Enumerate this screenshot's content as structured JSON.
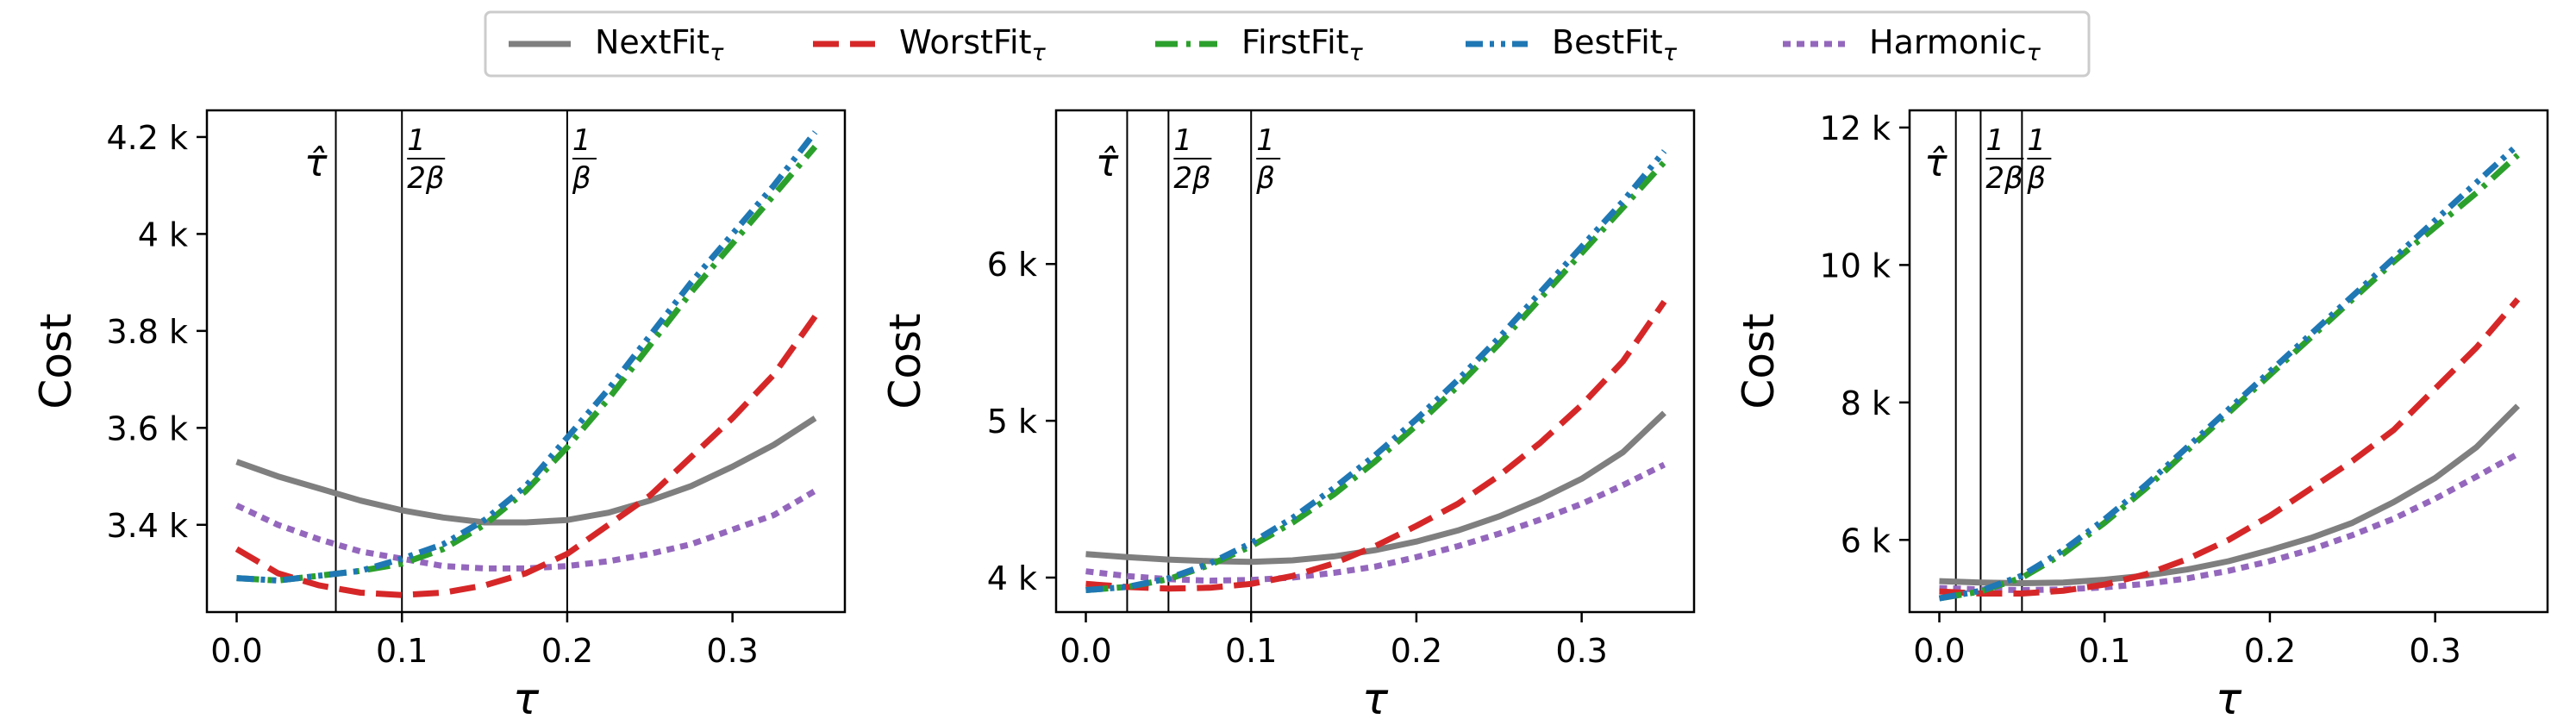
{
  "legend": {
    "placement": "top-center",
    "entries": [
      {
        "key": "nextfit",
        "name": "NextFit",
        "sub": "τ",
        "color": "#7f7f7f",
        "dash": "solid"
      },
      {
        "key": "worstfit",
        "name": "WorstFit",
        "sub": "τ",
        "color": "#d62728",
        "dash": "dashed"
      },
      {
        "key": "firstfit",
        "name": "FirstFit",
        "sub": "τ",
        "color": "#2ca02c",
        "dash": "dashdot"
      },
      {
        "key": "bestfit",
        "name": "BestFit",
        "sub": "τ",
        "color": "#1f77b4",
        "dash": "dashdotdot"
      },
      {
        "key": "harmonic",
        "name": "Harmonic",
        "sub": "τ",
        "color": "#9467bd",
        "dash": "dotted"
      }
    ]
  },
  "chart_data": [
    {
      "type": "line",
      "xlabel": "τ",
      "ylabel": "Cost",
      "xlim": [
        -0.018,
        0.368
      ],
      "ylim": [
        3220,
        4255
      ],
      "xticks": [
        {
          "value": 0.0,
          "label": "0.0"
        },
        {
          "value": 0.1,
          "label": "0.1"
        },
        {
          "value": 0.2,
          "label": "0.2"
        },
        {
          "value": 0.3,
          "label": "0.3"
        }
      ],
      "yticks": [
        {
          "value": 3400,
          "label": "3.4 k"
        },
        {
          "value": 3600,
          "label": "3.6 k"
        },
        {
          "value": 3800,
          "label": "3.8 k"
        },
        {
          "value": 4000,
          "label": "4 k"
        },
        {
          "value": 4200,
          "label": "4.2 k"
        }
      ],
      "vlines": [
        {
          "x": 0.06,
          "label": "τ̂",
          "kind": "hat"
        },
        {
          "x": 0.1,
          "label": "1/2β",
          "kind": "frac",
          "num": "1",
          "den": "2β"
        },
        {
          "x": 0.2,
          "label": "1/β",
          "kind": "frac",
          "num": "1",
          "den": "β"
        }
      ],
      "x": [
        0.0,
        0.025,
        0.05,
        0.075,
        0.1,
        0.125,
        0.15,
        0.175,
        0.2,
        0.225,
        0.25,
        0.275,
        0.3,
        0.325,
        0.35
      ],
      "series": [
        {
          "key": "nextfit",
          "name": "NextFit τ",
          "values": [
            3530,
            3500,
            3475,
            3450,
            3430,
            3415,
            3405,
            3405,
            3410,
            3425,
            3450,
            3480,
            3520,
            3565,
            3620
          ]
        },
        {
          "key": "worstfit",
          "name": "WorstFit τ",
          "values": [
            3350,
            3300,
            3275,
            3260,
            3255,
            3260,
            3275,
            3300,
            3340,
            3400,
            3460,
            3540,
            3620,
            3710,
            3830
          ]
        },
        {
          "key": "firstfit",
          "name": "FirstFit τ",
          "values": [
            3290,
            3285,
            3295,
            3305,
            3320,
            3350,
            3400,
            3470,
            3560,
            3660,
            3770,
            3880,
            3980,
            4080,
            4180
          ]
        },
        {
          "key": "bestfit",
          "name": "BestFit τ",
          "values": [
            3290,
            3285,
            3295,
            3305,
            3330,
            3360,
            3410,
            3480,
            3580,
            3680,
            3790,
            3900,
            4000,
            4100,
            4210
          ]
        },
        {
          "key": "harmonic",
          "name": "Harmonic τ",
          "values": [
            3440,
            3400,
            3370,
            3345,
            3330,
            3315,
            3310,
            3310,
            3315,
            3325,
            3340,
            3360,
            3390,
            3420,
            3470
          ]
        }
      ]
    },
    {
      "type": "line",
      "xlabel": "τ",
      "ylabel": "Cost",
      "xlim": [
        -0.018,
        0.368
      ],
      "ylim": [
        3780,
        6980
      ],
      "xticks": [
        {
          "value": 0.0,
          "label": "0.0"
        },
        {
          "value": 0.1,
          "label": "0.1"
        },
        {
          "value": 0.2,
          "label": "0.2"
        },
        {
          "value": 0.3,
          "label": "0.3"
        }
      ],
      "yticks": [
        {
          "value": 4000,
          "label": "4 k"
        },
        {
          "value": 5000,
          "label": "5 k"
        },
        {
          "value": 6000,
          "label": "6 k"
        }
      ],
      "vlines": [
        {
          "x": 0.025,
          "label": "τ̂",
          "kind": "hat"
        },
        {
          "x": 0.05,
          "label": "1/2β",
          "kind": "frac",
          "num": "1",
          "den": "2β"
        },
        {
          "x": 0.1,
          "label": "1/β",
          "kind": "frac",
          "num": "1",
          "den": "β"
        }
      ],
      "x": [
        0.0,
        0.025,
        0.05,
        0.075,
        0.1,
        0.125,
        0.15,
        0.175,
        0.2,
        0.225,
        0.25,
        0.275,
        0.3,
        0.325,
        0.35
      ],
      "series": [
        {
          "key": "nextfit",
          "name": "NextFit τ",
          "values": [
            4150,
            4130,
            4115,
            4105,
            4100,
            4110,
            4135,
            4175,
            4230,
            4300,
            4390,
            4500,
            4630,
            4800,
            5050
          ]
        },
        {
          "key": "worstfit",
          "name": "WorstFit τ",
          "values": [
            3960,
            3940,
            3930,
            3935,
            3960,
            4010,
            4090,
            4200,
            4330,
            4470,
            4650,
            4860,
            5100,
            5380,
            5760
          ]
        },
        {
          "key": "firstfit",
          "name": "FirstFit τ",
          "values": [
            3920,
            3940,
            3990,
            4080,
            4200,
            4350,
            4530,
            4740,
            4970,
            5220,
            5490,
            5780,
            6070,
            6360,
            6650
          ]
        },
        {
          "key": "bestfit",
          "name": "BestFit τ",
          "values": [
            3920,
            3940,
            3995,
            4090,
            4220,
            4380,
            4570,
            4780,
            5010,
            5260,
            5530,
            5820,
            6110,
            6400,
            6720
          ]
        },
        {
          "key": "harmonic",
          "name": "Harmonic τ",
          "values": [
            4040,
            4010,
            3990,
            3980,
            3985,
            4000,
            4030,
            4070,
            4130,
            4200,
            4280,
            4370,
            4470,
            4590,
            4720
          ]
        }
      ]
    },
    {
      "type": "line",
      "xlabel": "τ",
      "ylabel": "Cost",
      "xlim": [
        -0.018,
        0.368
      ],
      "ylim": [
        4950,
        12250
      ],
      "xticks": [
        {
          "value": 0.0,
          "label": "0.0"
        },
        {
          "value": 0.1,
          "label": "0.1"
        },
        {
          "value": 0.2,
          "label": "0.2"
        },
        {
          "value": 0.3,
          "label": "0.3"
        }
      ],
      "yticks": [
        {
          "value": 6000,
          "label": "6 k"
        },
        {
          "value": 8000,
          "label": "8 k"
        },
        {
          "value": 10000,
          "label": "10 k"
        },
        {
          "value": 12000,
          "label": "12 k"
        }
      ],
      "vlines": [
        {
          "x": 0.01,
          "label": "τ̂",
          "kind": "hat"
        },
        {
          "x": 0.025,
          "label": "1/2β",
          "kind": "frac",
          "num": "1",
          "den": "2β"
        },
        {
          "x": 0.05,
          "label": "1/β",
          "kind": "frac",
          "num": "1",
          "den": "β"
        }
      ],
      "x": [
        0.0,
        0.025,
        0.05,
        0.075,
        0.1,
        0.125,
        0.15,
        0.175,
        0.2,
        0.225,
        0.25,
        0.275,
        0.3,
        0.325,
        0.35
      ],
      "series": [
        {
          "key": "nextfit",
          "name": "NextFit τ",
          "values": [
            5400,
            5380,
            5370,
            5380,
            5420,
            5480,
            5570,
            5690,
            5850,
            6030,
            6250,
            6550,
            6900,
            7350,
            7950
          ]
        },
        {
          "key": "worstfit",
          "name": "WorstFit τ",
          "values": [
            5250,
            5220,
            5220,
            5260,
            5350,
            5500,
            5720,
            6000,
            6350,
            6750,
            7150,
            7600,
            8200,
            8800,
            9500
          ]
        },
        {
          "key": "firstfit",
          "name": "FirstFit τ",
          "values": [
            5150,
            5250,
            5450,
            5800,
            6250,
            6750,
            7300,
            7850,
            8400,
            8950,
            9500,
            10050,
            10550,
            11050,
            11600
          ]
        },
        {
          "key": "bestfit",
          "name": "BestFit τ",
          "values": [
            5150,
            5260,
            5480,
            5850,
            6300,
            6800,
            7350,
            7900,
            8450,
            9000,
            9550,
            10100,
            10650,
            11200,
            11750
          ]
        },
        {
          "key": "harmonic",
          "name": "Harmonic τ",
          "values": [
            5300,
            5280,
            5270,
            5280,
            5310,
            5360,
            5440,
            5550,
            5690,
            5860,
            6070,
            6310,
            6600,
            6920,
            7250
          ]
        }
      ]
    }
  ]
}
